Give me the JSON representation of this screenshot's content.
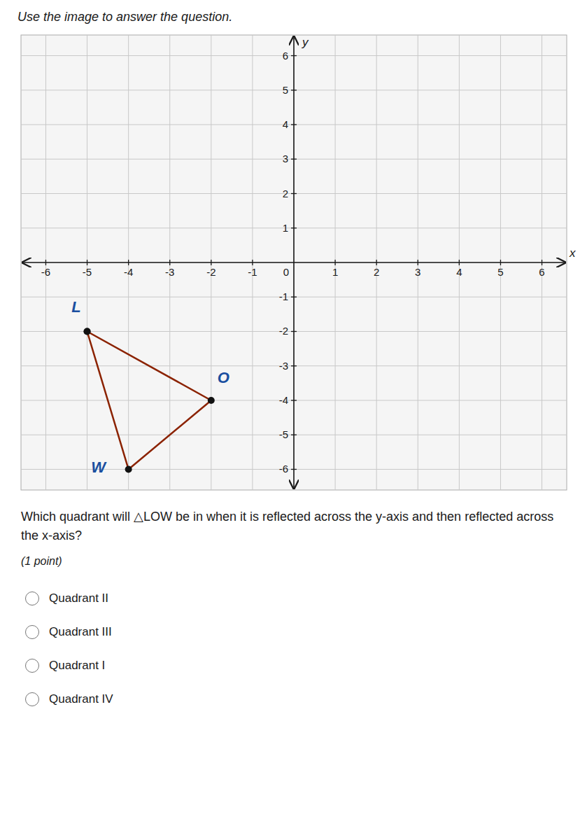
{
  "chart_data": {
    "type": "line",
    "title": "Use the image to answer the question.",
    "xlabel": "x",
    "ylabel": "y",
    "xlim": [
      -6.6,
      6.6
    ],
    "ylim": [
      -6.6,
      6.6
    ],
    "xticks": [
      -6,
      -5,
      -4,
      -3,
      -2,
      -1,
      0,
      1,
      2,
      3,
      4,
      5,
      6
    ],
    "yticks": [
      -6,
      -5,
      -4,
      -3,
      -2,
      -1,
      0,
      1,
      2,
      3,
      4,
      5,
      6
    ],
    "grid": true,
    "series": [
      {
        "x": [
          -5,
          -2,
          -4,
          -5
        ],
        "values": [
          -2,
          -4,
          -6,
          -2
        ],
        "point_labels": [
          "L",
          "O",
          "W",
          null
        ],
        "color": "#8B2200",
        "marker": "circle"
      }
    ],
    "question": "Which quadrant will △LOW be in when it is reflected across the y-axis and then reflected across the x-axis?",
    "note": "(1 point)",
    "options": [
      "Quadrant II",
      "Quadrant III",
      "Quadrant I",
      "Quadrant IV"
    ]
  }
}
